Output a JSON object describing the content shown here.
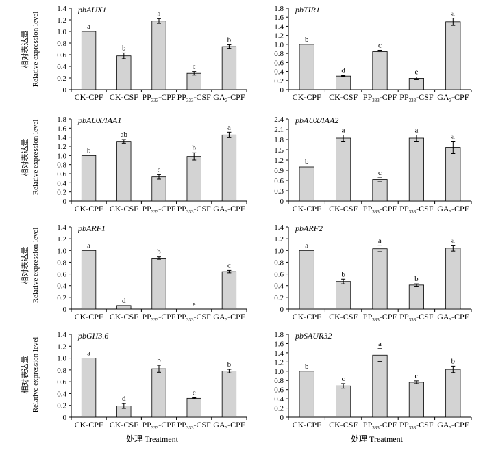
{
  "ylabel_cn": "相对表达量",
  "ylabel_en": "Relative expression level",
  "xlabel": "处理 Treatment",
  "categories": [
    {
      "main": "CK-CPF",
      "sub": ""
    },
    {
      "main": "CK-CSF",
      "sub": ""
    },
    {
      "main": "PP",
      "sub": "333",
      "rest": "-CPF"
    },
    {
      "main": "PP",
      "sub": "333",
      "rest": "-CSF"
    },
    {
      "main": "GA",
      "sub": "3",
      "rest": "-CPF"
    }
  ],
  "chart_data": [
    {
      "type": "bar",
      "title": "pbAUX1",
      "ylim": [
        0,
        1.4
      ],
      "ticks": [
        0,
        0.2,
        0.4,
        0.6,
        0.8,
        1.0,
        1.2,
        1.4
      ],
      "decimals": 1,
      "values": [
        1.0,
        0.58,
        1.18,
        0.28,
        0.74
      ],
      "errors": [
        0,
        0.05,
        0.04,
        0.03,
        0.03
      ],
      "letters": [
        "a",
        "b",
        "a",
        "c",
        "b"
      ]
    },
    {
      "type": "bar",
      "title": "pbTIR1",
      "ylim": [
        0,
        1.8
      ],
      "ticks": [
        0,
        0.2,
        0.4,
        0.6,
        0.8,
        1.0,
        1.2,
        1.4,
        1.6,
        1.8
      ],
      "decimals": 1,
      "values": [
        1.0,
        0.3,
        0.84,
        0.25,
        1.5
      ],
      "errors": [
        0,
        0.01,
        0.03,
        0.03,
        0.08
      ],
      "letters": [
        "b",
        "d",
        "c",
        "e",
        "a"
      ]
    },
    {
      "type": "bar",
      "title": "pbAUX/IAA1",
      "ylim": [
        0,
        1.8
      ],
      "ticks": [
        0,
        0.2,
        0.4,
        0.6,
        0.8,
        1.0,
        1.2,
        1.4,
        1.6,
        1.8
      ],
      "decimals": 1,
      "values": [
        1.0,
        1.31,
        0.53,
        0.98,
        1.45
      ],
      "errors": [
        0,
        0.04,
        0.05,
        0.08,
        0.06
      ],
      "letters": [
        "b",
        "ab",
        "c",
        "b",
        "a"
      ]
    },
    {
      "type": "bar",
      "title": "pbAUX/IAA2",
      "ylim": [
        0,
        2.4
      ],
      "ticks": [
        0,
        0.3,
        0.6,
        0.9,
        1.2,
        1.5,
        1.8,
        2.1,
        2.4
      ],
      "decimals": 1,
      "values": [
        1.0,
        1.84,
        0.63,
        1.84,
        1.57
      ],
      "errors": [
        0,
        0.09,
        0.05,
        0.09,
        0.18
      ],
      "letters": [
        "b",
        "a",
        "c",
        "a",
        "a"
      ]
    },
    {
      "type": "bar",
      "title": "pbARF1",
      "ylim": [
        0,
        1.4
      ],
      "ticks": [
        0,
        0.2,
        0.4,
        0.6,
        0.8,
        1.0,
        1.2,
        1.4
      ],
      "decimals": 1,
      "values": [
        1.0,
        0.06,
        0.87,
        0.0,
        0.64
      ],
      "errors": [
        0,
        0.0,
        0.02,
        0.0,
        0.02
      ],
      "letters": [
        "a",
        "d",
        "b",
        "e",
        "c"
      ]
    },
    {
      "type": "bar",
      "title": "pbARF2",
      "ylim": [
        0,
        1.4
      ],
      "ticks": [
        0,
        0.2,
        0.4,
        0.6,
        0.8,
        1.0,
        1.2,
        1.4
      ],
      "decimals": 1,
      "values": [
        1.0,
        0.47,
        1.03,
        0.41,
        1.04
      ],
      "errors": [
        0,
        0.04,
        0.05,
        0.02,
        0.05
      ],
      "letters": [
        "a",
        "b",
        "a",
        "b",
        "a"
      ]
    },
    {
      "type": "bar",
      "title": "pbGH3.6",
      "ylim": [
        0,
        1.4
      ],
      "ticks": [
        0,
        0.2,
        0.4,
        0.6,
        0.8,
        1.0,
        1.2,
        1.4
      ],
      "decimals": 1,
      "values": [
        1.0,
        0.19,
        0.82,
        0.32,
        0.78
      ],
      "errors": [
        0,
        0.04,
        0.06,
        0.01,
        0.03
      ],
      "letters": [
        "a",
        "d",
        "b",
        "c",
        "b"
      ]
    },
    {
      "type": "bar",
      "title": "pbSAUR32",
      "ylim": [
        0,
        1.8
      ],
      "ticks": [
        0,
        0.2,
        0.4,
        0.6,
        0.8,
        1.0,
        1.2,
        1.4,
        1.6,
        1.8
      ],
      "decimals": 1,
      "values": [
        1.0,
        0.68,
        1.35,
        0.76,
        1.04
      ],
      "errors": [
        0,
        0.05,
        0.14,
        0.03,
        0.07
      ],
      "letters": [
        "b",
        "c",
        "a",
        "c",
        "b"
      ]
    }
  ],
  "colors": {
    "bar_fill": "#d3d3d3",
    "bar_stroke": "#000000",
    "axis": "#000000"
  }
}
